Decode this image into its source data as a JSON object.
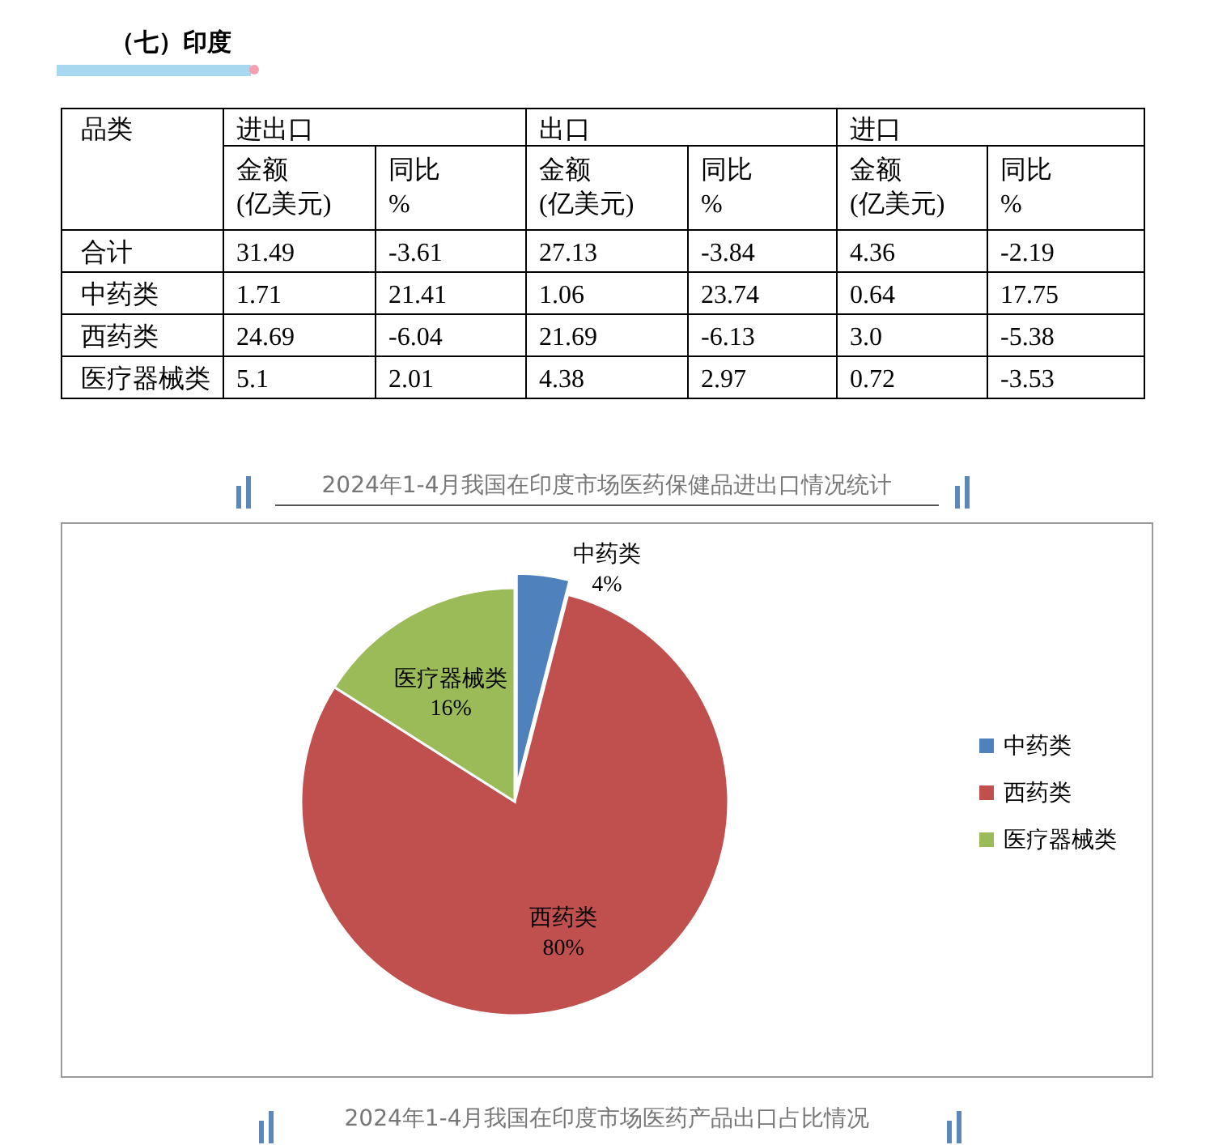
{
  "chart_data": [
    {
      "type": "other",
      "title": "（七）印度",
      "ylabel": "品类",
      "annotations": [
        "进出口",
        "出口",
        "进口",
        "2024年1-4月我国在印度市场医药保健品进出口情况统计"
      ],
      "categories": [
        "金额\n(亿美元)",
        "同比\n%",
        "金额\n(亿美元)",
        "同比\n%",
        "金额\n(亿美元)",
        "同比\n%"
      ],
      "y_categories": [
        "合计",
        "中药类",
        "西药类",
        "医疗器械类"
      ],
      "cell_labels": [
        [
          "31.49",
          "-3.61",
          "27.13",
          "-3.84",
          "4.36",
          "-2.19"
        ],
        [
          "1.71",
          "21.41",
          "1.06",
          "23.74",
          "0.64",
          "17.75"
        ],
        [
          "24.69",
          "-6.04",
          "21.69",
          "-6.13",
          "3.0",
          "-5.38"
        ],
        [
          "5.1",
          "2.01",
          "4.38",
          "2.97",
          "0.72",
          "-3.53"
        ]
      ]
    },
    {
      "type": "pie",
      "title": "2024年1-4月我国在印度市场医药产品出口占比情况",
      "categories": [
        "中药类",
        "西药类",
        "医疗器械类"
      ],
      "values": [
        4,
        80,
        16
      ],
      "colors": [
        "#4f81bd",
        "#c0504d",
        "#9bbb59"
      ],
      "value_labels": [
        "4%",
        "80%",
        "16%"
      ],
      "legend": "right"
    }
  ]
}
